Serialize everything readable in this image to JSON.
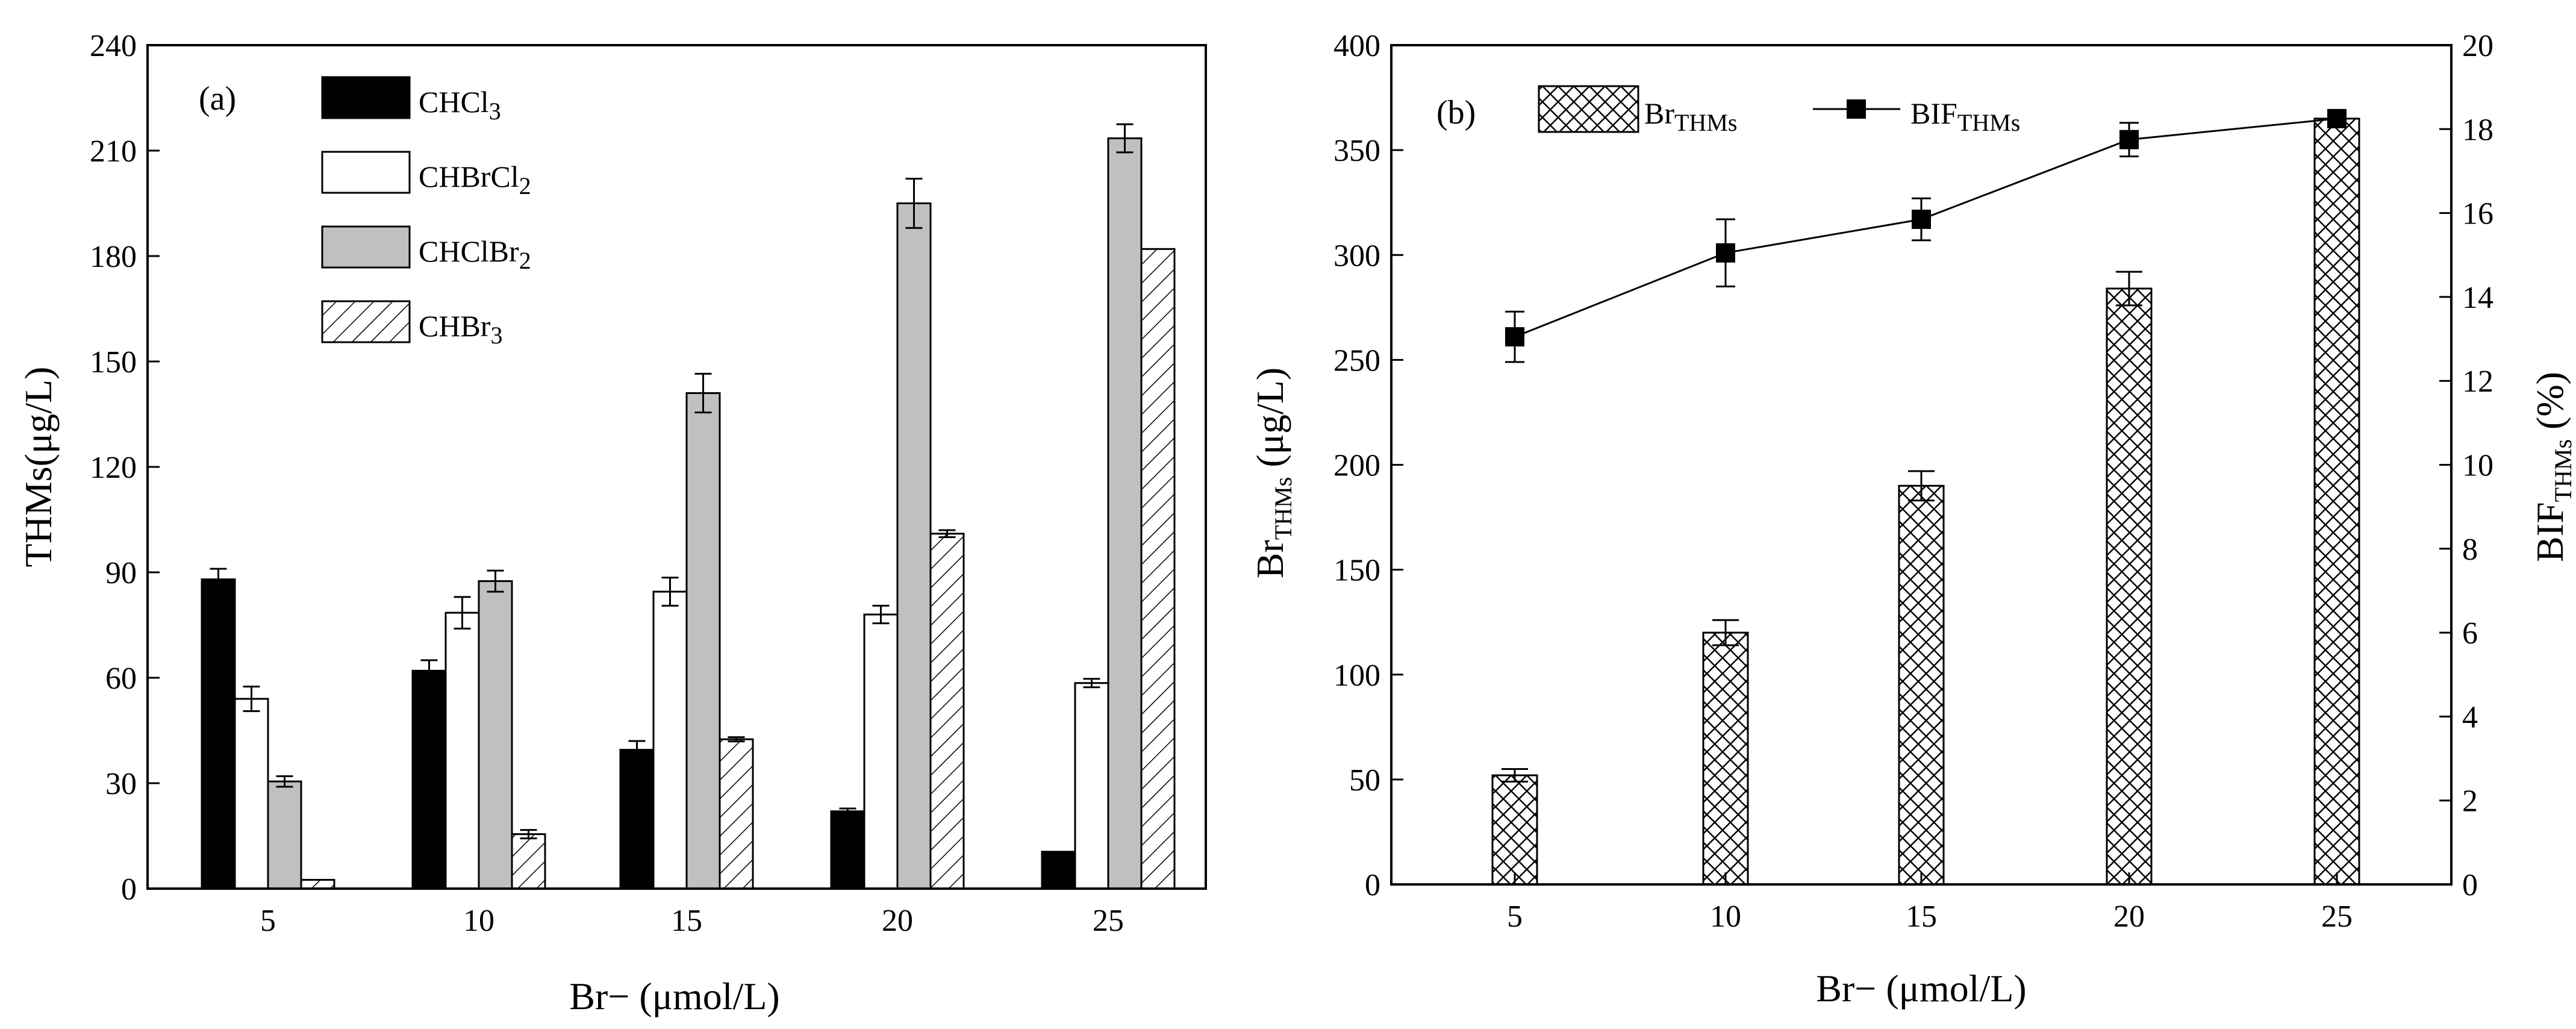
{
  "chart_data": [
    {
      "panel": "(a)",
      "type": "bar",
      "xlabel": "Br− (μmol/L)",
      "ylabel": "THMs(μg/L)",
      "ylim": [
        0,
        240
      ],
      "yticks": [
        "0",
        "30",
        "60",
        "90",
        "120",
        "150",
        "180",
        "210",
        "240"
      ],
      "categories": [
        "5",
        "10",
        "15",
        "20",
        "25"
      ],
      "legend_position": "top-left",
      "series": [
        {
          "name": "CHCl",
          "sub": "3",
          "fill": "solid",
          "color": "#000000",
          "values": [
            88,
            62,
            39.5,
            22,
            10.5
          ],
          "errors": [
            3,
            3,
            2.5,
            0.8,
            0
          ]
        },
        {
          "name": "CHBrCl",
          "sub": "2",
          "fill": "white",
          "color": "#ffffff",
          "values": [
            54,
            78.5,
            84.5,
            78,
            58.5
          ],
          "errors": [
            3.5,
            4.5,
            4,
            2.5,
            1.2
          ]
        },
        {
          "name": "CHClBr",
          "sub": "2",
          "fill": "gray",
          "color": "#c0c0c0",
          "values": [
            30.5,
            87.5,
            141,
            195,
            213.5
          ],
          "errors": [
            1.5,
            3,
            5.5,
            7,
            4
          ]
        },
        {
          "name": "CHBr",
          "sub": "3",
          "fill": "hatch",
          "color": "#ffffff",
          "values": [
            2.5,
            15.5,
            42.5,
            101,
            182
          ],
          "errors": [
            0,
            1.2,
            0.6,
            1,
            0
          ]
        }
      ]
    },
    {
      "panel": "(b)",
      "type": "bar+line",
      "xlabel": "Br− (μmol/L)",
      "ylabel_left": {
        "main": "Br",
        "sub": "THMs",
        "rest": " (μg/L)"
      },
      "ylabel_right": {
        "main": "BIF",
        "sub": "THMs",
        "rest": " (%)"
      },
      "ylim_left": [
        0,
        400
      ],
      "ylim_right": [
        0,
        20
      ],
      "yticks_left": [
        "0",
        "50",
        "100",
        "150",
        "200",
        "250",
        "300",
        "350",
        "400"
      ],
      "yticks_right": [
        "0",
        "2",
        "4",
        "6",
        "8",
        "10",
        "12",
        "14",
        "16",
        "18",
        "20"
      ],
      "categories": [
        "5",
        "10",
        "15",
        "20",
        "25"
      ],
      "legend_position": "top",
      "bars": {
        "name": "Br",
        "sub": "THMs",
        "fill": "crosshatch",
        "values": [
          52,
          120,
          190,
          284,
          365
        ],
        "errors": [
          3,
          6,
          7,
          8,
          0
        ]
      },
      "line": {
        "name": "BIF",
        "sub": "THMs",
        "marker": "square",
        "values": [
          13.05,
          15.05,
          15.85,
          17.75,
          18.25
        ],
        "errors": [
          0.6,
          0.8,
          0.5,
          0.4,
          0
        ]
      }
    }
  ]
}
